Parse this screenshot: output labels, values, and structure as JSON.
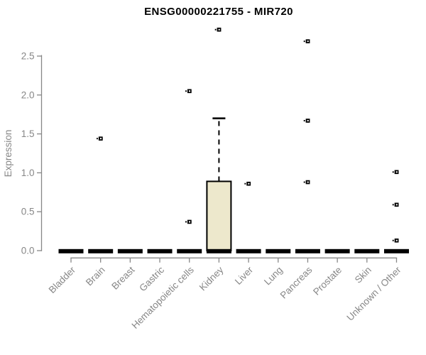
{
  "chart_data": {
    "type": "boxplot",
    "title": "ENSG00000221755 - MIR720",
    "xlabel": "",
    "ylabel": "Expression",
    "ylim": [
      0,
      2.5
    ],
    "yticks": [
      "0.0",
      "0.5",
      "1.0",
      "1.5",
      "2.0",
      "2.5"
    ],
    "grid": false,
    "legend": false,
    "categories": [
      "Bladder",
      "Brain",
      "Breast",
      "Gastric",
      "Hematopoietic cells",
      "Kidney",
      "Liver",
      "Lung",
      "Pancreas",
      "Prostate",
      "Skin",
      "Unknown / Other"
    ],
    "boxes": [
      {
        "category": "Bladder",
        "whisker_low": 0,
        "q1": 0,
        "median": 0,
        "q3": 0,
        "whisker_high": 0,
        "outliers": []
      },
      {
        "category": "Brain",
        "whisker_low": 0,
        "q1": 0,
        "median": 0,
        "q3": 0,
        "whisker_high": 0,
        "outliers": [
          1.44
        ]
      },
      {
        "category": "Breast",
        "whisker_low": 0,
        "q1": 0,
        "median": 0,
        "q3": 0,
        "whisker_high": 0,
        "outliers": []
      },
      {
        "category": "Gastric",
        "whisker_low": 0,
        "q1": 0,
        "median": 0,
        "q3": 0,
        "whisker_high": 0,
        "outliers": []
      },
      {
        "category": "Hematopoietic cells",
        "whisker_low": 0,
        "q1": 0,
        "median": 0,
        "q3": 0,
        "whisker_high": 0,
        "outliers": [
          2.05,
          0.37
        ]
      },
      {
        "category": "Kidney",
        "whisker_low": 0,
        "q1": 0,
        "median": 0,
        "q3": 0.89,
        "whisker_high": 1.7,
        "outliers": [
          2.84
        ]
      },
      {
        "category": "Liver",
        "whisker_low": 0,
        "q1": 0,
        "median": 0,
        "q3": 0,
        "whisker_high": 0,
        "outliers": [
          0.86
        ]
      },
      {
        "category": "Lung",
        "whisker_low": 0,
        "q1": 0,
        "median": 0,
        "q3": 0,
        "whisker_high": 0,
        "outliers": []
      },
      {
        "category": "Pancreas",
        "whisker_low": 0,
        "q1": 0,
        "median": 0,
        "q3": 0,
        "whisker_high": 0,
        "outliers": [
          2.69,
          1.67,
          0.88
        ]
      },
      {
        "category": "Prostate",
        "whisker_low": 0,
        "q1": 0,
        "median": 0,
        "q3": 0,
        "whisker_high": 0,
        "outliers": []
      },
      {
        "category": "Skin",
        "whisker_low": 0,
        "q1": 0,
        "median": 0,
        "q3": 0,
        "whisker_high": 0,
        "outliers": []
      },
      {
        "category": "Unknown / Other",
        "whisker_low": 0,
        "q1": 0,
        "median": 0,
        "q3": 0,
        "whisker_high": 0,
        "outliers": [
          1.01,
          0.59,
          0.13
        ]
      }
    ],
    "colors": {
      "box_fill": "#EDE8CC",
      "box_border": "#000000",
      "median": "#000000",
      "outlier": "#000000",
      "axis": "#878787",
      "text": "#878787",
      "title": "#000000",
      "background": "#ffffff"
    }
  }
}
